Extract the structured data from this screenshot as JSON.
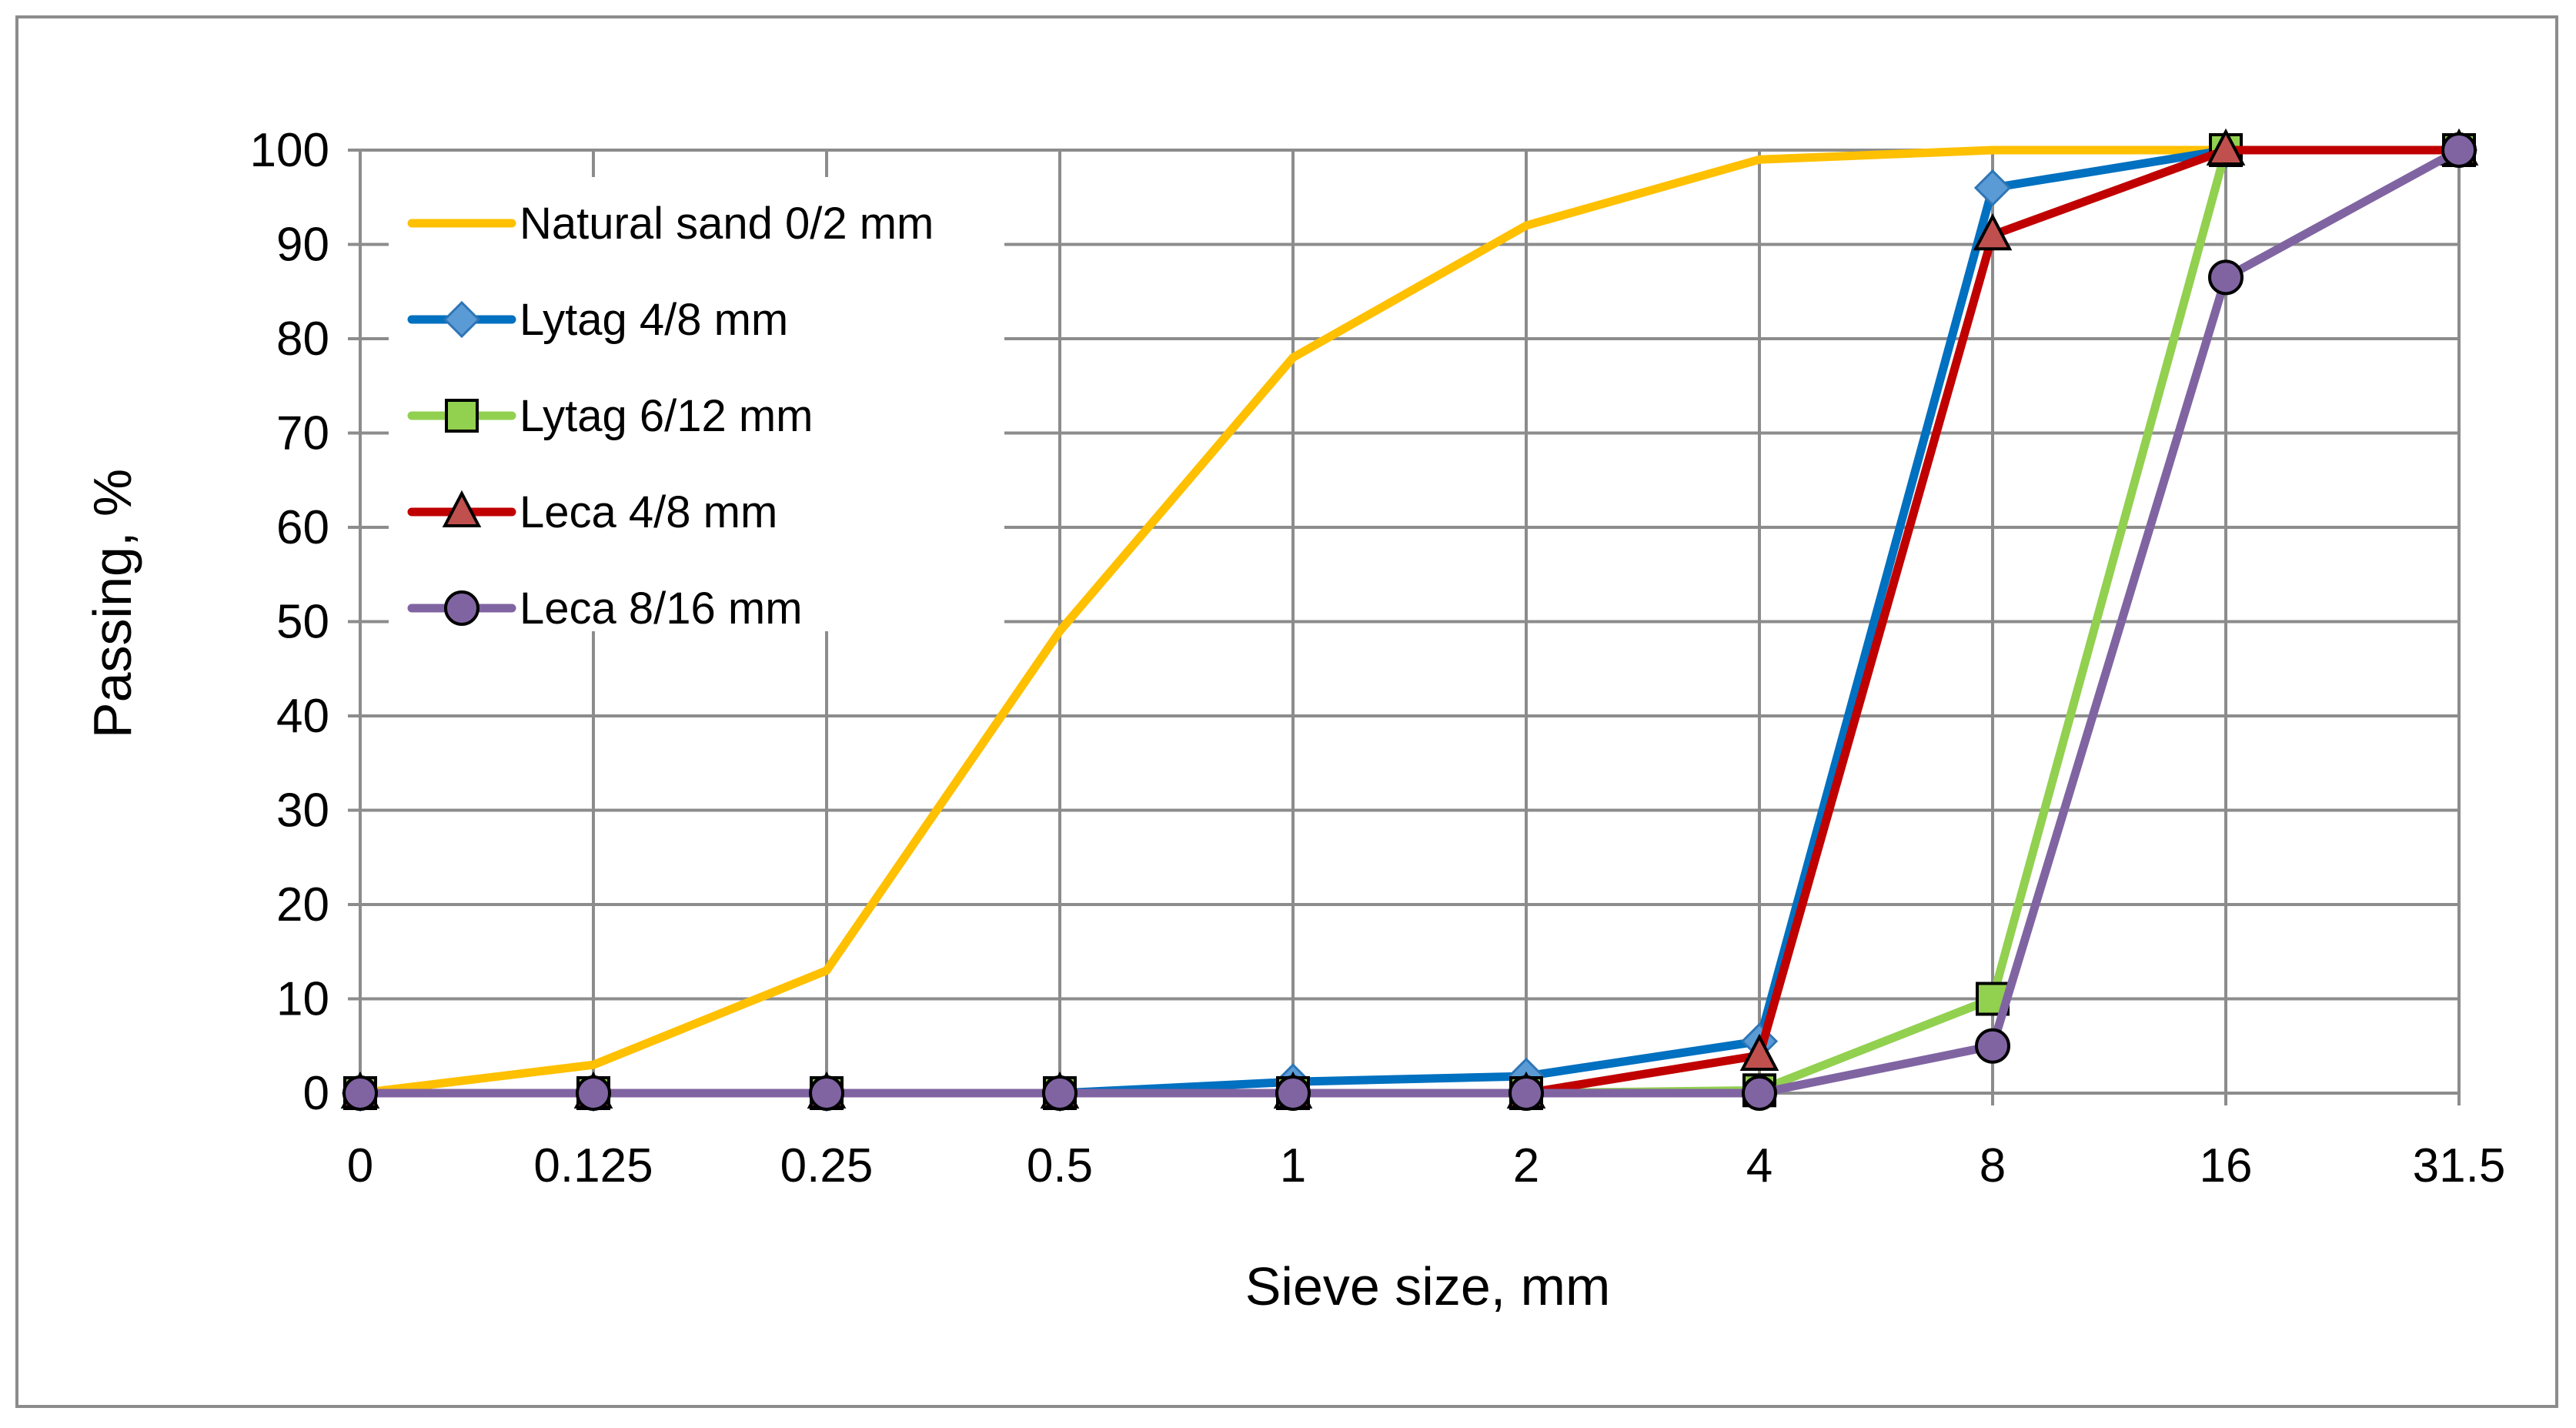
{
  "chart_data": {
    "type": "line",
    "title": "",
    "xlabel": "Sieve size,  mm",
    "ylabel": "Passing,  %",
    "ylim": [
      0,
      100
    ],
    "y_ticks": [
      "0",
      "10",
      "20",
      "30",
      "40",
      "50",
      "60",
      "70",
      "80",
      "90",
      "100"
    ],
    "categories": [
      "0",
      "0.125",
      "0.25",
      "0.5",
      "1",
      "2",
      "4",
      "8",
      "16",
      "31.5"
    ],
    "grid": true,
    "legend_position": "top-left",
    "series": [
      {
        "name": "Natural sand 0/2 mm",
        "color": "#FFC000",
        "marker": "none",
        "values": [
          0,
          3,
          13,
          49,
          78,
          92,
          99,
          100,
          100,
          100
        ]
      },
      {
        "name": "Lytag 4/8 mm",
        "color": "#0070C0",
        "marker": "diamond",
        "marker_fill": "#5B9BD5",
        "values": [
          0,
          0,
          0,
          0,
          1.2,
          1.8,
          5.5,
          96,
          100,
          100
        ]
      },
      {
        "name": "Lytag 6/12 mm",
        "color": "#92D050",
        "marker": "square",
        "marker_fill": "#92D050",
        "values": [
          0,
          0,
          0,
          0,
          0,
          0,
          0.3,
          10,
          100,
          100
        ]
      },
      {
        "name": "Leca 4/8 mm",
        "color": "#C00000",
        "marker": "triangle",
        "marker_fill": "#C0504D",
        "values": [
          0,
          0,
          0,
          0,
          0,
          0,
          4,
          91,
          100,
          100
        ]
      },
      {
        "name": "Leca 8/16 mm",
        "color": "#8064A2",
        "marker": "circle",
        "marker_fill": "#8064A2",
        "values": [
          0,
          0,
          0,
          0,
          0,
          0,
          0,
          5,
          86.5,
          100
        ]
      }
    ]
  }
}
